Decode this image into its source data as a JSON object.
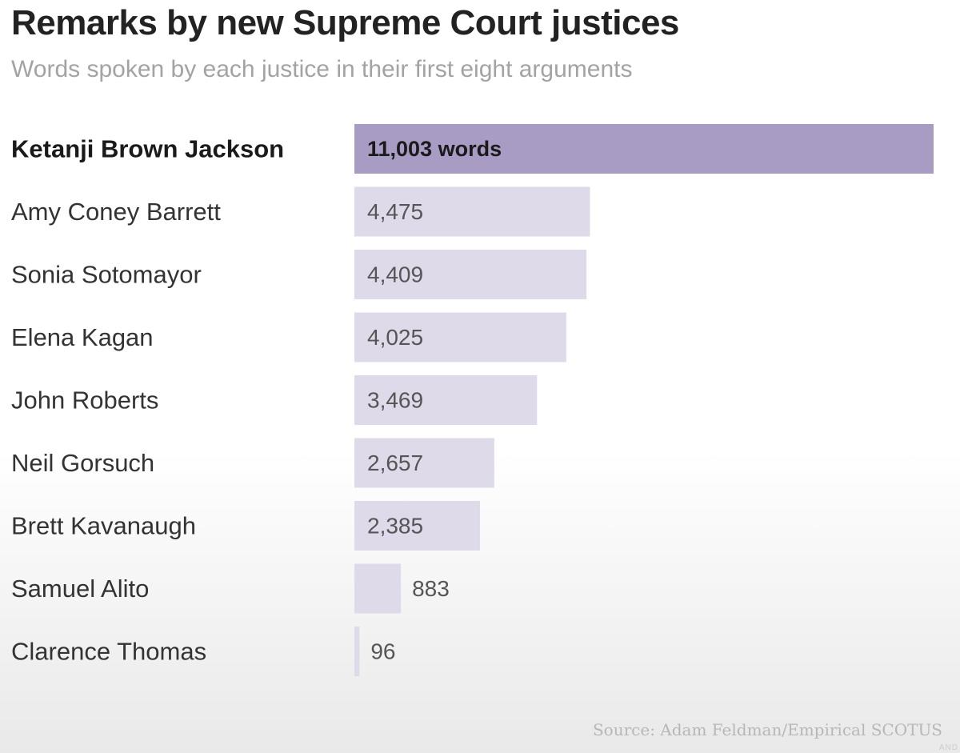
{
  "chart_data": {
    "type": "bar",
    "orientation": "horizontal",
    "title": "Remarks by new Supreme Court justices",
    "subtitle": "Words spoken by each justice in their first eight arguments",
    "categories": [
      "Ketanji Brown Jackson",
      "Amy Coney Barrett",
      "Sonia Sotomayor",
      "Elena Kagan",
      "John Roberts",
      "Neil Gorsuch",
      "Brett Kavanaugh",
      "Samuel Alito",
      "Clarence Thomas"
    ],
    "values": [
      11003,
      4475,
      4409,
      4025,
      3469,
      2657,
      2385,
      883,
      96
    ],
    "value_labels": [
      "11,003 words",
      "4,475",
      "4,409",
      "4,025",
      "3,469",
      "2,657",
      "2,385",
      "883",
      "96"
    ],
    "highlight_index": 0,
    "xlim": [
      0,
      11003
    ],
    "grid": false,
    "colors": {
      "highlight_bar": "#a89bc4",
      "bar": "#dedaea",
      "highlight_text": "#1a1a1a",
      "label_text": "#333333",
      "value_text": "#555555"
    },
    "source": "Source: Adam Feldman/Empirical SCOTUS"
  },
  "watermark": "AND"
}
